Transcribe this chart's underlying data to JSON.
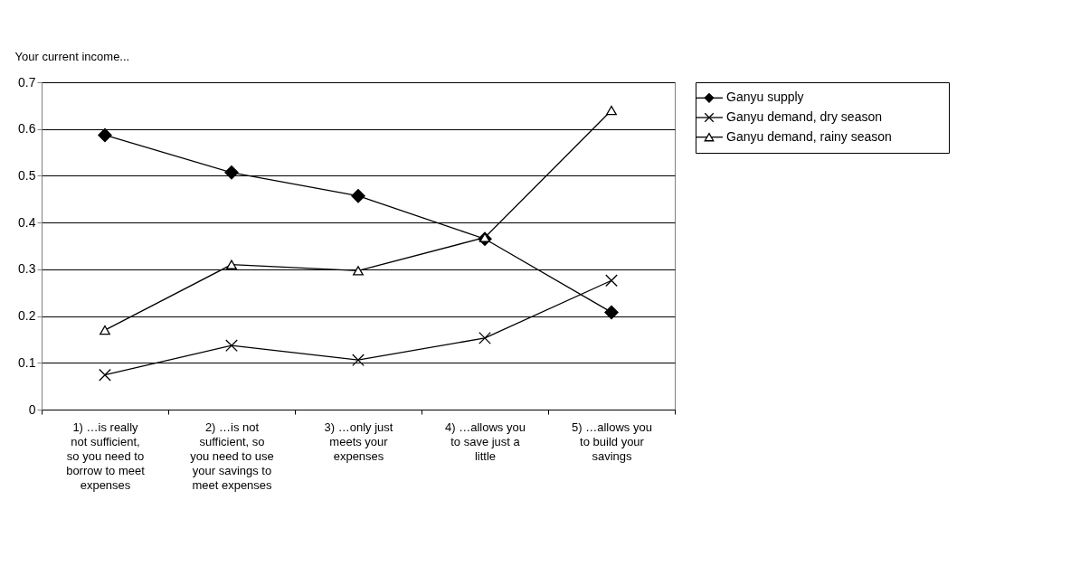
{
  "chart_data": {
    "type": "line",
    "ylabel": "Your current income...",
    "categories": [
      "1) …is really not sufficient, so you need to borrow to meet expenses",
      "2) …is not sufficient, so you need to use your savings to meet expenses",
      "3) …only just meets your expenses",
      "4) …allows you to save just a little",
      "5) …allows you to build your savings"
    ],
    "series": [
      {
        "name": "Ganyu supply",
        "color": "#000000",
        "marker": "diamond",
        "values": [
          0.587,
          0.507,
          0.457,
          0.365,
          0.208
        ]
      },
      {
        "name": "Ganyu demand, dry season",
        "color": "#000000",
        "marker": "cross",
        "values": [
          0.074,
          0.137,
          0.106,
          0.153,
          0.276
        ]
      },
      {
        "name": "Ganyu demand, rainy season",
        "color": "#000000",
        "marker": "triangle",
        "values": [
          0.17,
          0.31,
          0.297,
          0.368,
          0.64
        ]
      }
    ],
    "ylim": [
      0,
      0.7
    ],
    "yticks": [
      0,
      0.1,
      0.2,
      0.3,
      0.4,
      0.5,
      0.6,
      0.7
    ],
    "grid": "y",
    "legend": "right",
    "line_style": "solid"
  }
}
